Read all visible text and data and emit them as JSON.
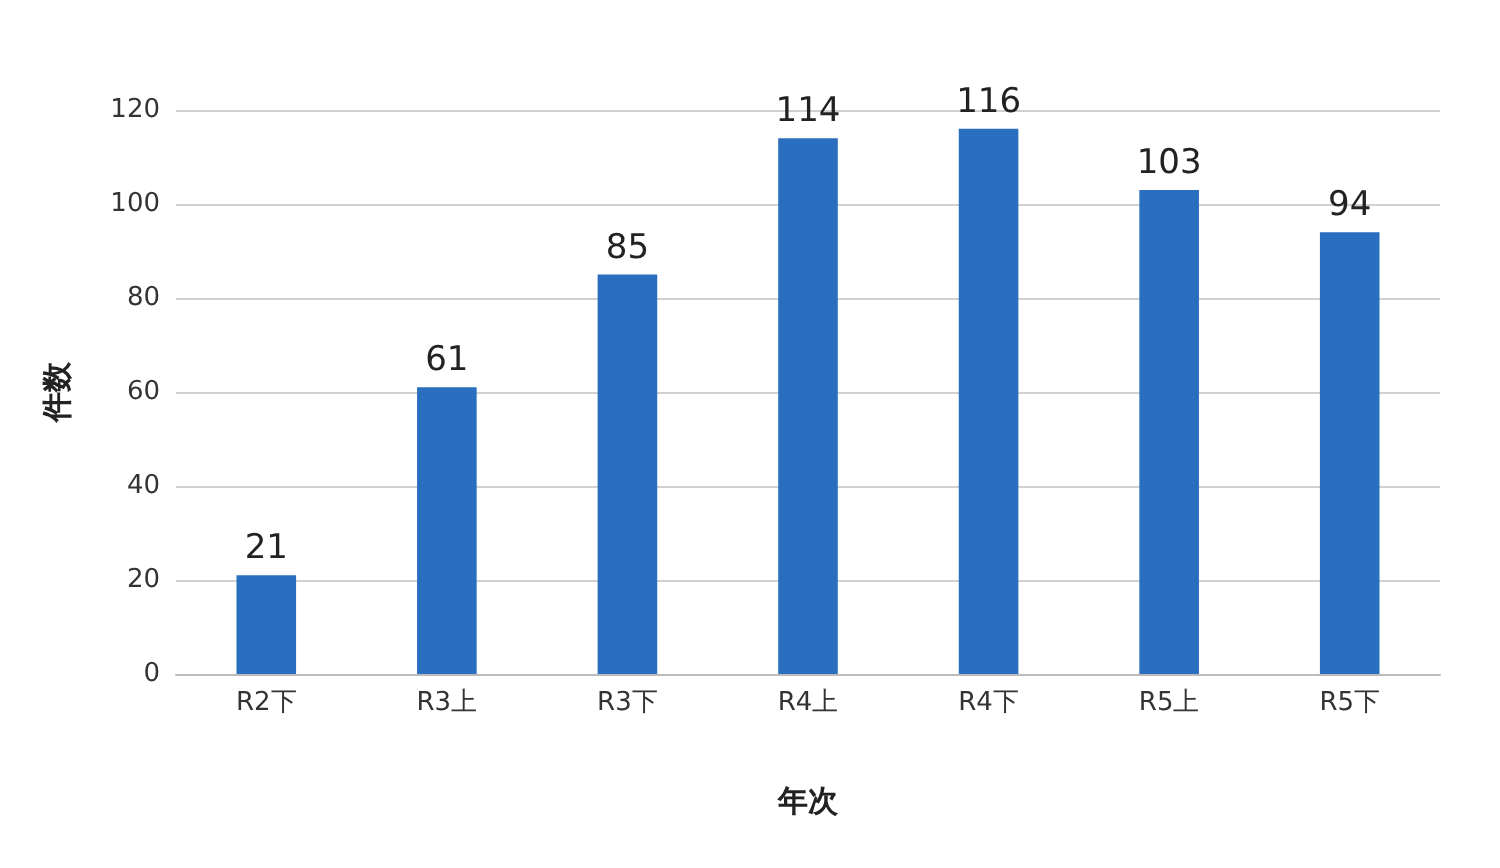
{
  "chart_data": {
    "type": "bar",
    "xlabel": "年次",
    "ylabel": "件数",
    "categories": [
      "R2下",
      "R3上",
      "R3下",
      "R4上",
      "R4下",
      "R5上",
      "R5下"
    ],
    "values": [
      21,
      61,
      85,
      114,
      116,
      103,
      94
    ],
    "color": "#2a6ebf",
    "ylim": [
      0,
      120
    ],
    "yticks": [
      0,
      20,
      40,
      60,
      80,
      100,
      120
    ],
    "grid": "y",
    "data_labels": true
  }
}
